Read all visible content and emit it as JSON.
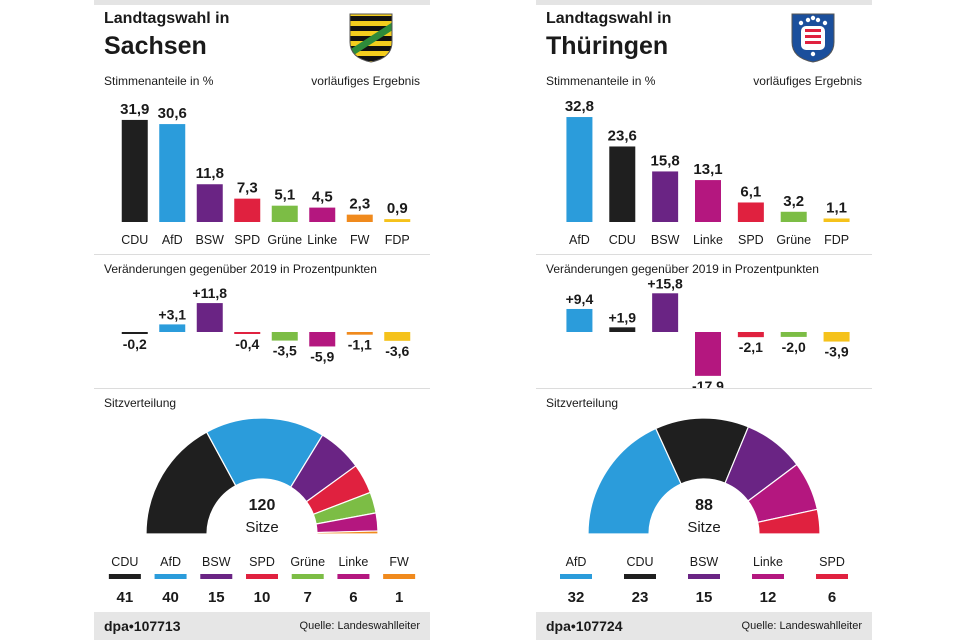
{
  "colors": {
    "CDU": "#1f1f1f",
    "AfD": "#2b9cdb",
    "BSW": "#6a2484",
    "SPD": "#e0213f",
    "Grüne": "#7cbd45",
    "Linke": "#b4177f",
    "FW": "#f08a1d",
    "FDP": "#f5c21b"
  },
  "panels": [
    {
      "title_small": "Landtagswahl in",
      "title_big": "Sachsen",
      "crest_icon": "saxony-coat-of-arms-icon",
      "vote_label": "Stimmenanteile in %",
      "prelim_label": "vorläufiges Ergebnis",
      "change_label": "Veränderungen gegenüber 2019 in Prozentpunkten",
      "seats_label": "Sitzverteilung",
      "total_seats": "120",
      "seats_word": "Sitze",
      "credit": "dpa•107713",
      "source": "Quelle: Landeswahlleiter"
    },
    {
      "title_small": "Landtagswahl in",
      "title_big": "Thüringen",
      "crest_icon": "thuringia-coat-of-arms-icon",
      "vote_label": "Stimmenanteile in %",
      "prelim_label": "vorläufiges Ergebnis",
      "change_label": "Veränderungen gegenüber 2019 in Prozentpunkten",
      "seats_label": "Sitzverteilung",
      "total_seats": "88",
      "seats_word": "Sitze",
      "credit": "dpa•107724",
      "source": "Quelle: Landeswahlleiter"
    }
  ],
  "chart_data": [
    {
      "type": "bar",
      "title": "Stimmenanteile in %",
      "categories": [
        "CDU",
        "AfD",
        "BSW",
        "SPD",
        "Grüne",
        "Linke",
        "FW",
        "FDP"
      ],
      "values": [
        31.9,
        30.6,
        11.8,
        7.3,
        5.1,
        4.5,
        2.3,
        0.9
      ],
      "labels": [
        "31,9",
        "30,6",
        "11,8",
        "7,3",
        "5,1",
        "4,5",
        "2,3",
        "0,9"
      ]
    },
    {
      "type": "bar",
      "title": "Veränderungen gegenüber 2019 in Prozentpunkten",
      "categories": [
        "CDU",
        "AfD",
        "BSW",
        "SPD",
        "Grüne",
        "Linke",
        "FW",
        "FDP"
      ],
      "values": [
        -0.2,
        3.1,
        11.8,
        -0.4,
        -3.5,
        -5.9,
        -1.1,
        -3.6
      ],
      "labels": [
        "-0,2",
        "+3,1",
        "+11,8",
        "-0,4",
        "-3,5",
        "-5,9",
        "-1,1",
        "-3,6"
      ]
    },
    {
      "type": "pie",
      "title": "Sitzverteilung",
      "categories": [
        "CDU",
        "AfD",
        "BSW",
        "SPD",
        "Grüne",
        "Linke",
        "FW"
      ],
      "values": [
        41,
        40,
        15,
        10,
        7,
        6,
        1
      ]
    },
    {
      "type": "bar",
      "title": "Stimmenanteile in %",
      "categories": [
        "AfD",
        "CDU",
        "BSW",
        "Linke",
        "SPD",
        "Grüne",
        "FDP"
      ],
      "values": [
        32.8,
        23.6,
        15.8,
        13.1,
        6.1,
        3.2,
        1.1
      ],
      "labels": [
        "32,8",
        "23,6",
        "15,8",
        "13,1",
        "6,1",
        "3,2",
        "1,1"
      ]
    },
    {
      "type": "bar",
      "title": "Veränderungen gegenüber 2019 in Prozentpunkten",
      "categories": [
        "AfD",
        "CDU",
        "BSW",
        "Linke",
        "SPD",
        "Grüne",
        "FDP"
      ],
      "values": [
        9.4,
        1.9,
        15.8,
        -17.9,
        -2.1,
        -2.0,
        -3.9
      ],
      "labels": [
        "+9,4",
        "+1,9",
        "+15,8",
        "-17,9",
        "-2,1",
        "-2,0",
        "-3,9"
      ]
    },
    {
      "type": "pie",
      "title": "Sitzverteilung",
      "categories": [
        "AfD",
        "CDU",
        "BSW",
        "Linke",
        "SPD"
      ],
      "values": [
        32,
        23,
        15,
        12,
        6
      ]
    }
  ]
}
